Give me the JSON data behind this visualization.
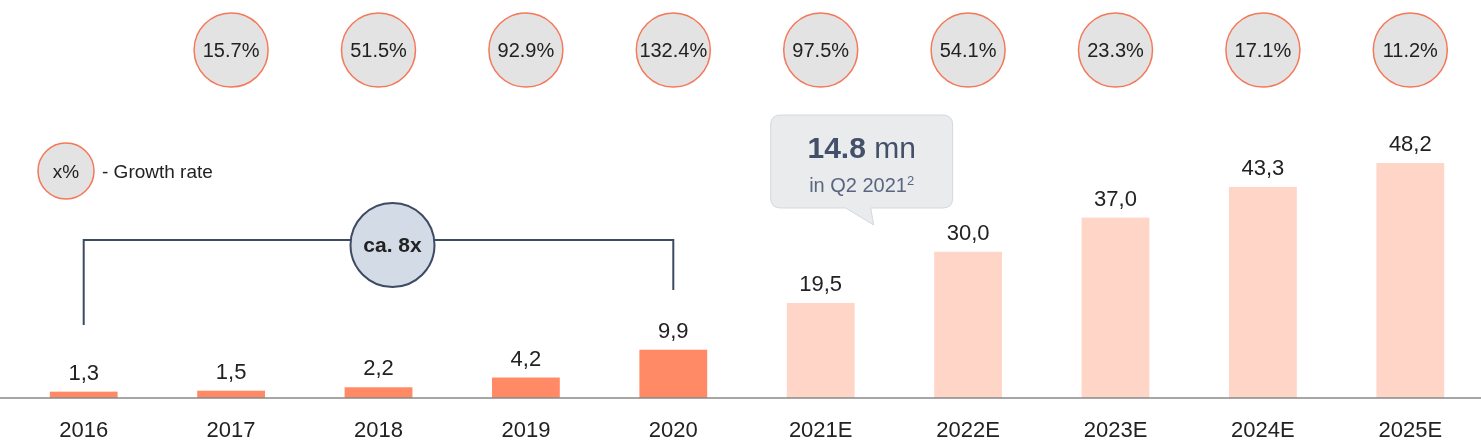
{
  "chart_data": {
    "type": "bar",
    "categories": [
      "2016",
      "2017",
      "2018",
      "2019",
      "2020",
      "2021E",
      "2022E",
      "2023E",
      "2024E",
      "2025E"
    ],
    "values": [
      1.3,
      1.5,
      2.2,
      4.2,
      9.9,
      19.5,
      30.0,
      37.0,
      43.3,
      48.2
    ],
    "value_labels": [
      "1,3",
      "1,5",
      "2,2",
      "4,2",
      "9,9",
      "19,5",
      "30,0",
      "37,0",
      "43,3",
      "48,2"
    ],
    "colors": [
      "#ff8a65",
      "#ff8a65",
      "#ff8a65",
      "#ff8a65",
      "#ff8a65",
      "#ffd5c8",
      "#ffd5c8",
      "#ffd5c8",
      "#ffd5c8",
      "#ffd5c8"
    ],
    "annotations": [
      "15.7%",
      "51.5%",
      "92.9%",
      "132.4%",
      "97.5%",
      "54.1%",
      "23.3%",
      "17.1%",
      "11.2%",
      "x%",
      "- Growth rate",
      "ca. 8x",
      "14.8 mn",
      "in Q2 2021$^{2}$"
    ]
  }
}
